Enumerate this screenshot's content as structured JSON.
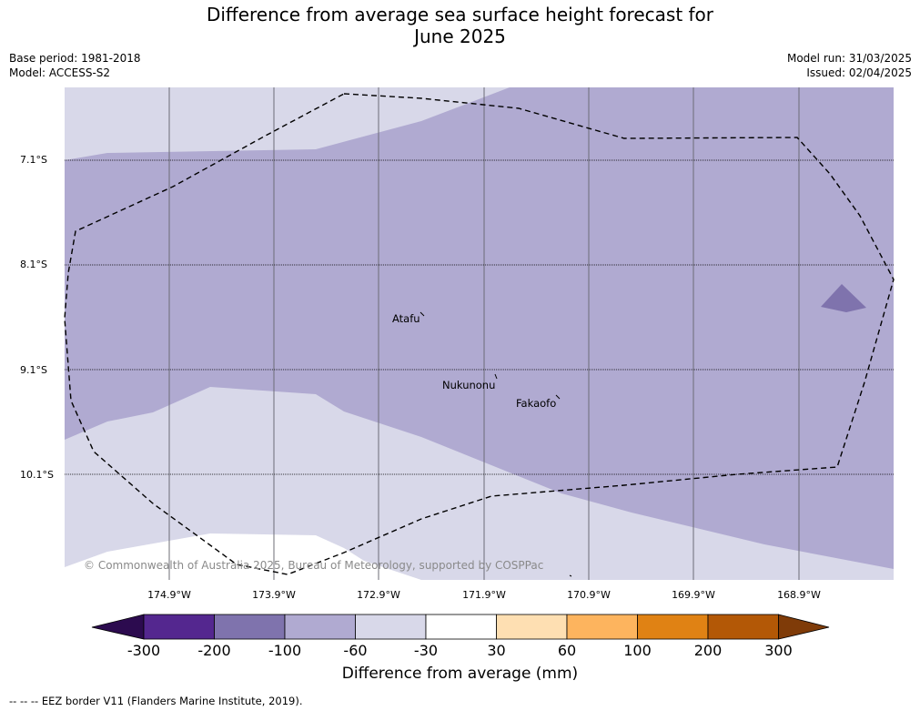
{
  "title": {
    "line1": "Difference from average sea surface height forecast for",
    "line2": "June 2025"
  },
  "meta": {
    "base_period": "Base period: 1981-2018",
    "model": "Model: ACCESS-S2",
    "model_run": "Model run: 31/03/2025",
    "issued": "Issued: 02/04/2025"
  },
  "map": {
    "latitude_labels": [
      "7.1°S",
      "8.1°S",
      "9.1°S",
      "10.1°S"
    ],
    "longitude_labels": [
      "174.9°W",
      "173.9°W",
      "172.9°W",
      "171.9°W",
      "170.9°W",
      "169.9°W",
      "168.9°W"
    ],
    "places": [
      "Atafu",
      "Nukunonu",
      "Fakaofo"
    ],
    "copyright": "© Commonwealth of Australia 2025, Bureau of Meteorology, supported by COSPPac",
    "colors": {
      "minus_100_to_minus_60": "#b0aad1",
      "minus_60_to_minus_30": "#d8d8e9",
      "minus_200_to_minus_100": "#7f73ad"
    }
  },
  "colorbar": {
    "ticks": [
      "-300",
      "-200",
      "-100",
      "-60",
      "-30",
      "30",
      "60",
      "100",
      "200",
      "300"
    ],
    "colors": [
      "#2c0b4f",
      "#54278f",
      "#7f73ad",
      "#b0aad1",
      "#d8d8e9",
      "#ffffff",
      "#fedfb2",
      "#fdb45e",
      "#e08214",
      "#b35806",
      "#7f3b08"
    ],
    "label": "Difference from average (mm)"
  },
  "footnote": "--  --  -- EEZ border V11 (Flanders Marine Institute, 2019)."
}
